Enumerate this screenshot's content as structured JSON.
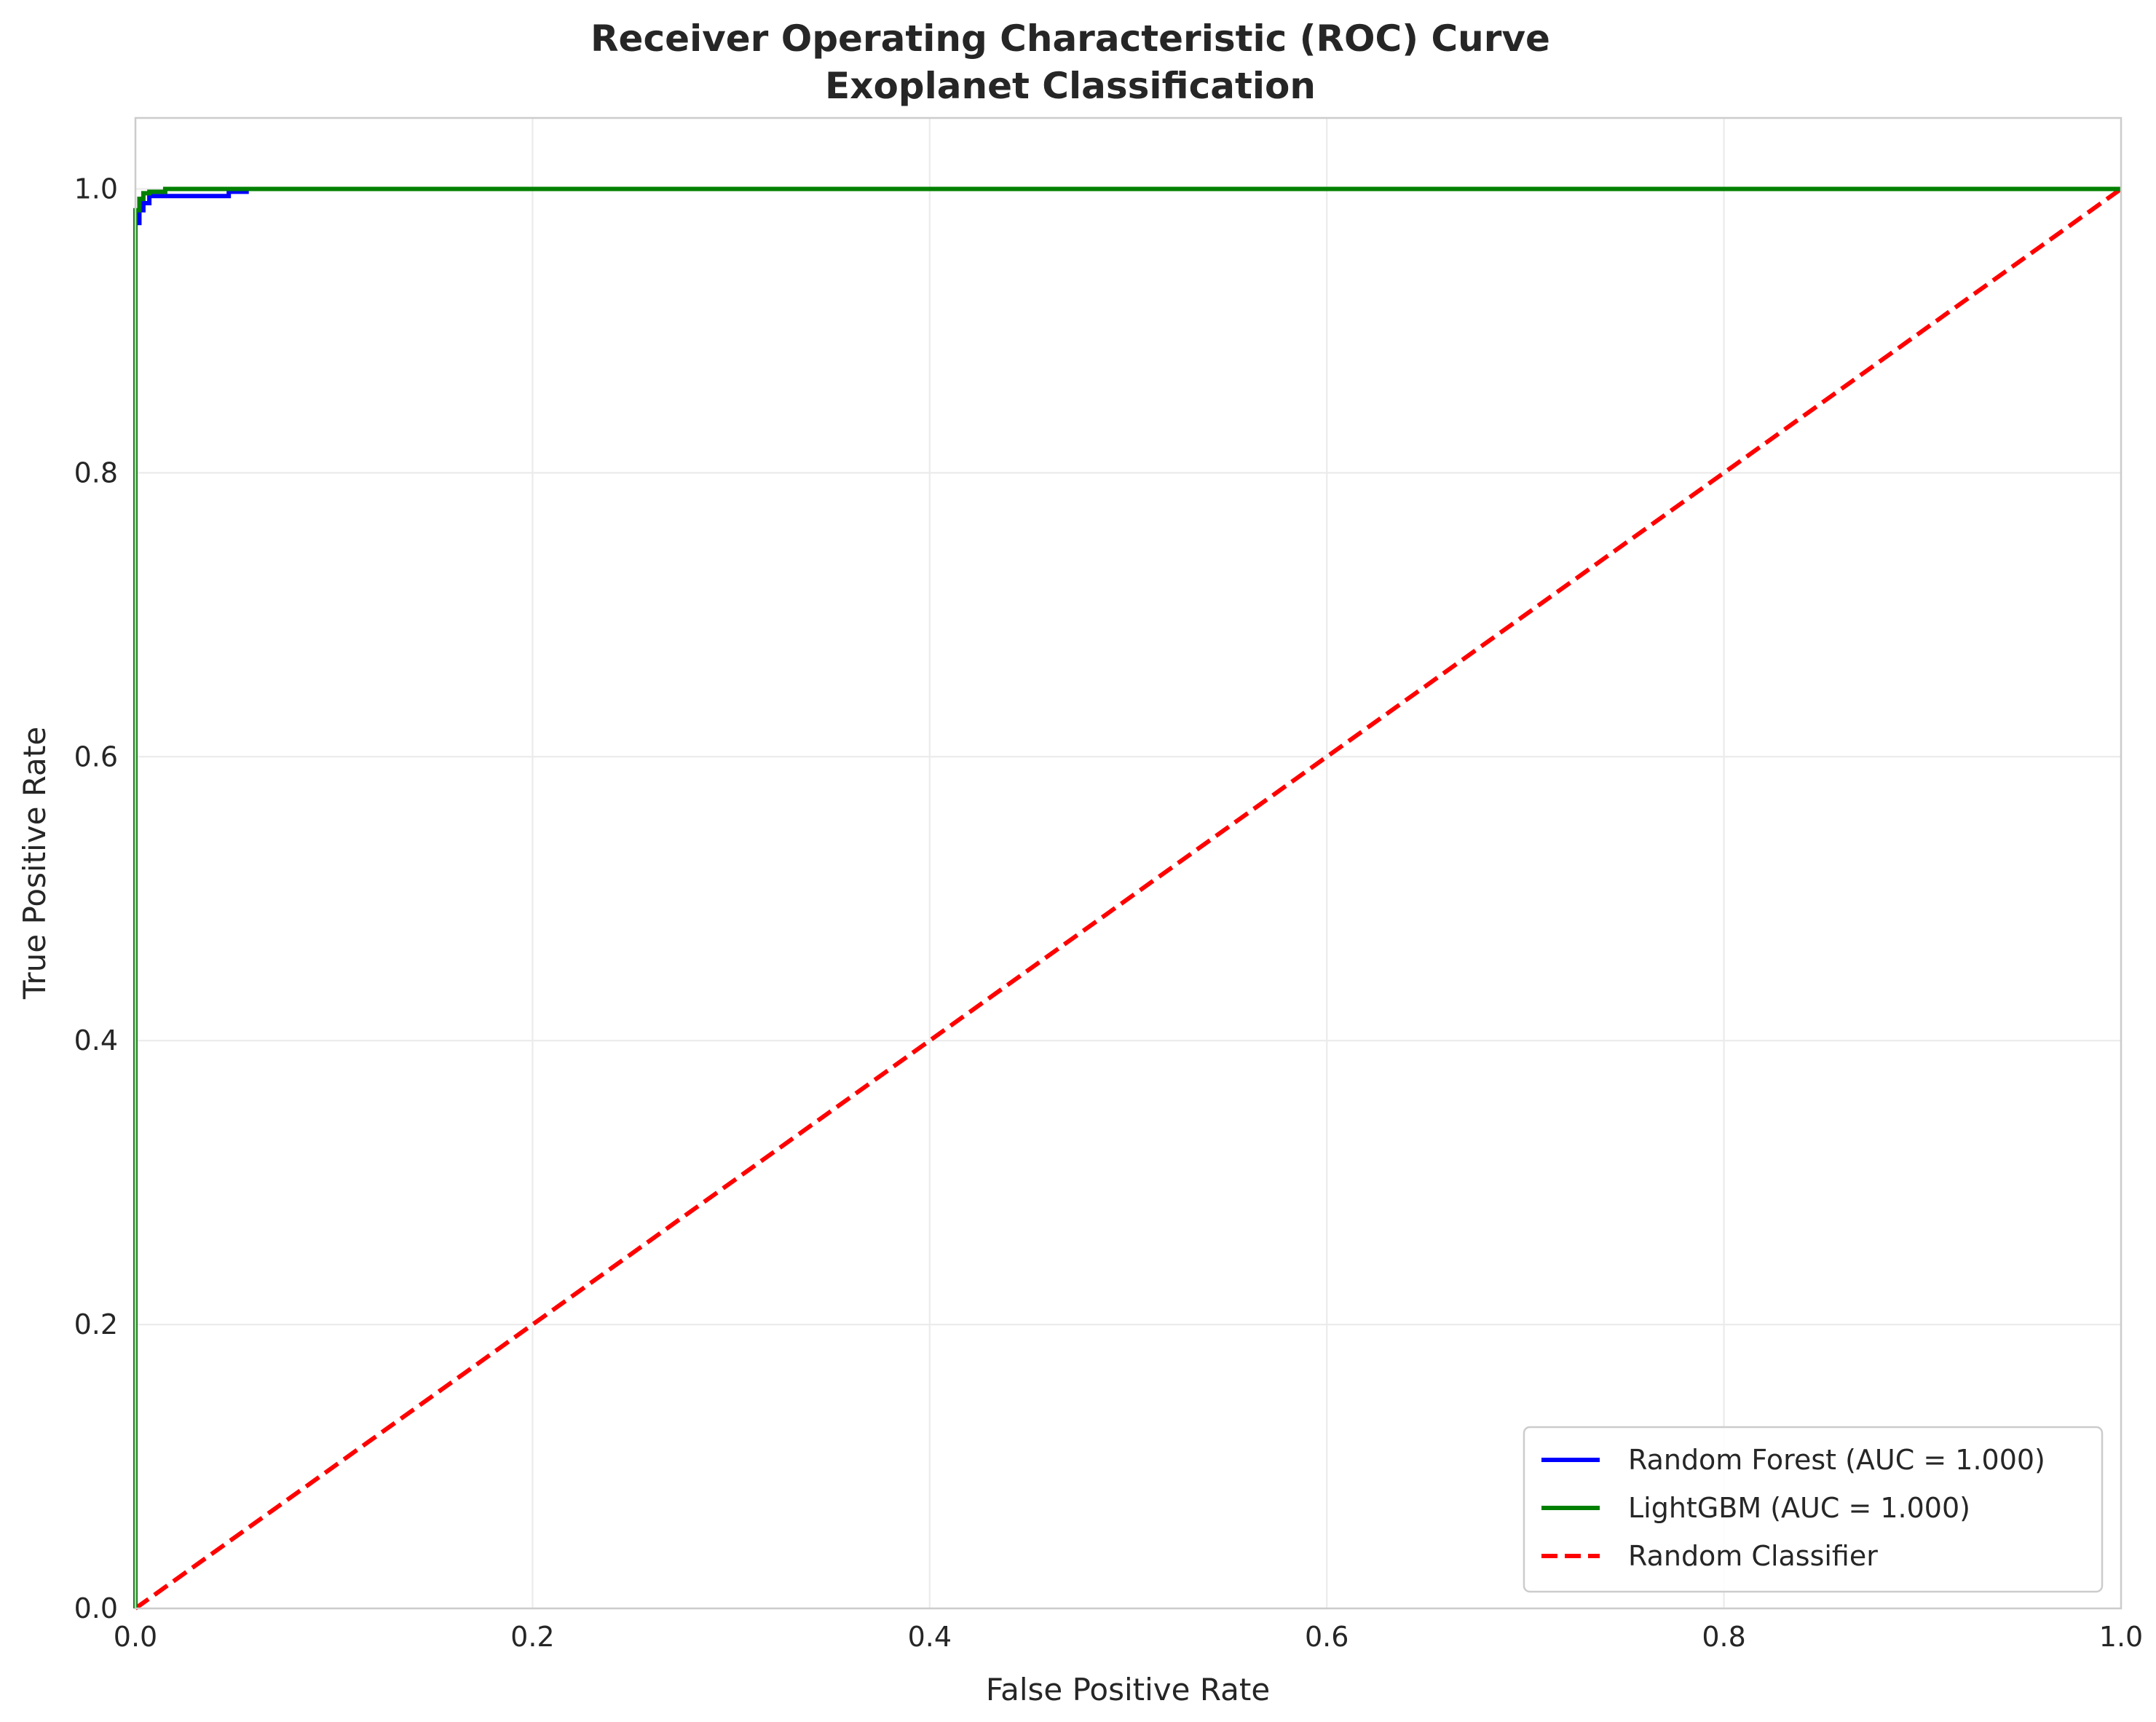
{
  "chart_data": {
    "type": "line",
    "title": "Receiver Operating Characteristic (ROC) Curve",
    "subtitle": "Exoplanet Classification",
    "xlabel": "False Positive Rate",
    "ylabel": "True Positive Rate",
    "xlim": [
      0.0,
      1.0
    ],
    "ylim": [
      0.0,
      1.05
    ],
    "xticks": [
      0.0,
      0.2,
      0.4,
      0.6,
      0.8,
      1.0
    ],
    "yticks": [
      0.0,
      0.2,
      0.4,
      0.6,
      0.8,
      1.0
    ],
    "xtick_labels": [
      "0.0",
      "0.2",
      "0.4",
      "0.6",
      "0.8",
      "1.0"
    ],
    "ytick_labels": [
      "0.0",
      "0.2",
      "0.4",
      "0.6",
      "0.8",
      "1.0"
    ],
    "grid": true,
    "legend_position": "bottom-right",
    "series": [
      {
        "name": "Random Forest (AUC = 1.000)",
        "color": "#0000ff",
        "dash": "solid",
        "x": [
          0.0,
          0.0,
          0.002,
          0.002,
          0.004,
          0.004,
          0.007,
          0.007,
          0.015,
          0.03,
          0.047,
          0.047,
          0.056,
          0.056,
          1.0
        ],
        "y": [
          0.0,
          0.976,
          0.976,
          0.985,
          0.985,
          0.99,
          0.99,
          0.995,
          0.995,
          0.995,
          0.995,
          0.998,
          0.998,
          1.0,
          1.0
        ]
      },
      {
        "name": "LightGBM (AUC = 1.000)",
        "color": "#008000",
        "dash": "solid",
        "x": [
          0.0,
          0.0,
          0.002,
          0.002,
          0.004,
          0.004,
          0.007,
          0.007,
          0.015,
          0.015,
          1.0
        ],
        "y": [
          0.0,
          0.985,
          0.985,
          0.993,
          0.993,
          0.997,
          0.997,
          0.998,
          0.998,
          1.0,
          1.0
        ]
      },
      {
        "name": "Random Classifier",
        "color": "#ff0000",
        "dash": "dashed",
        "x": [
          0.0,
          1.0
        ],
        "y": [
          0.0,
          1.0
        ]
      }
    ]
  }
}
